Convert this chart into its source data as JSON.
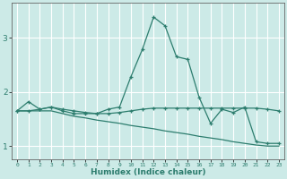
{
  "xlabel": "Humidex (Indice chaleur)",
  "background_color": "#cceae7",
  "grid_color": "#ffffff",
  "line_color": "#2d7d6e",
  "x_values": [
    0,
    1,
    2,
    3,
    4,
    5,
    6,
    7,
    8,
    9,
    10,
    11,
    12,
    13,
    14,
    15,
    16,
    17,
    18,
    19,
    20,
    21,
    22,
    23
  ],
  "line1": [
    1.65,
    1.82,
    1.68,
    1.72,
    1.65,
    1.6,
    1.6,
    1.6,
    1.68,
    1.72,
    2.28,
    2.78,
    3.38,
    3.22,
    2.65,
    2.6,
    1.9,
    1.42,
    1.68,
    1.62,
    1.72,
    1.08,
    1.05,
    1.05
  ],
  "line2": [
    1.65,
    1.65,
    1.68,
    1.72,
    1.68,
    1.65,
    1.62,
    1.6,
    1.6,
    1.62,
    1.65,
    1.68,
    1.7,
    1.7,
    1.7,
    1.7,
    1.7,
    1.7,
    1.7,
    1.7,
    1.7,
    1.7,
    1.68,
    1.65
  ],
  "line3": [
    1.65,
    1.65,
    1.65,
    1.65,
    1.6,
    1.55,
    1.52,
    1.48,
    1.45,
    1.42,
    1.38,
    1.35,
    1.32,
    1.28,
    1.25,
    1.22,
    1.18,
    1.15,
    1.12,
    1.08,
    1.05,
    1.02,
    1.0,
    1.0
  ],
  "ylim": [
    0.75,
    3.65
  ],
  "yticks": [
    1,
    2,
    3
  ],
  "xlim": [
    -0.5,
    23.5
  ]
}
